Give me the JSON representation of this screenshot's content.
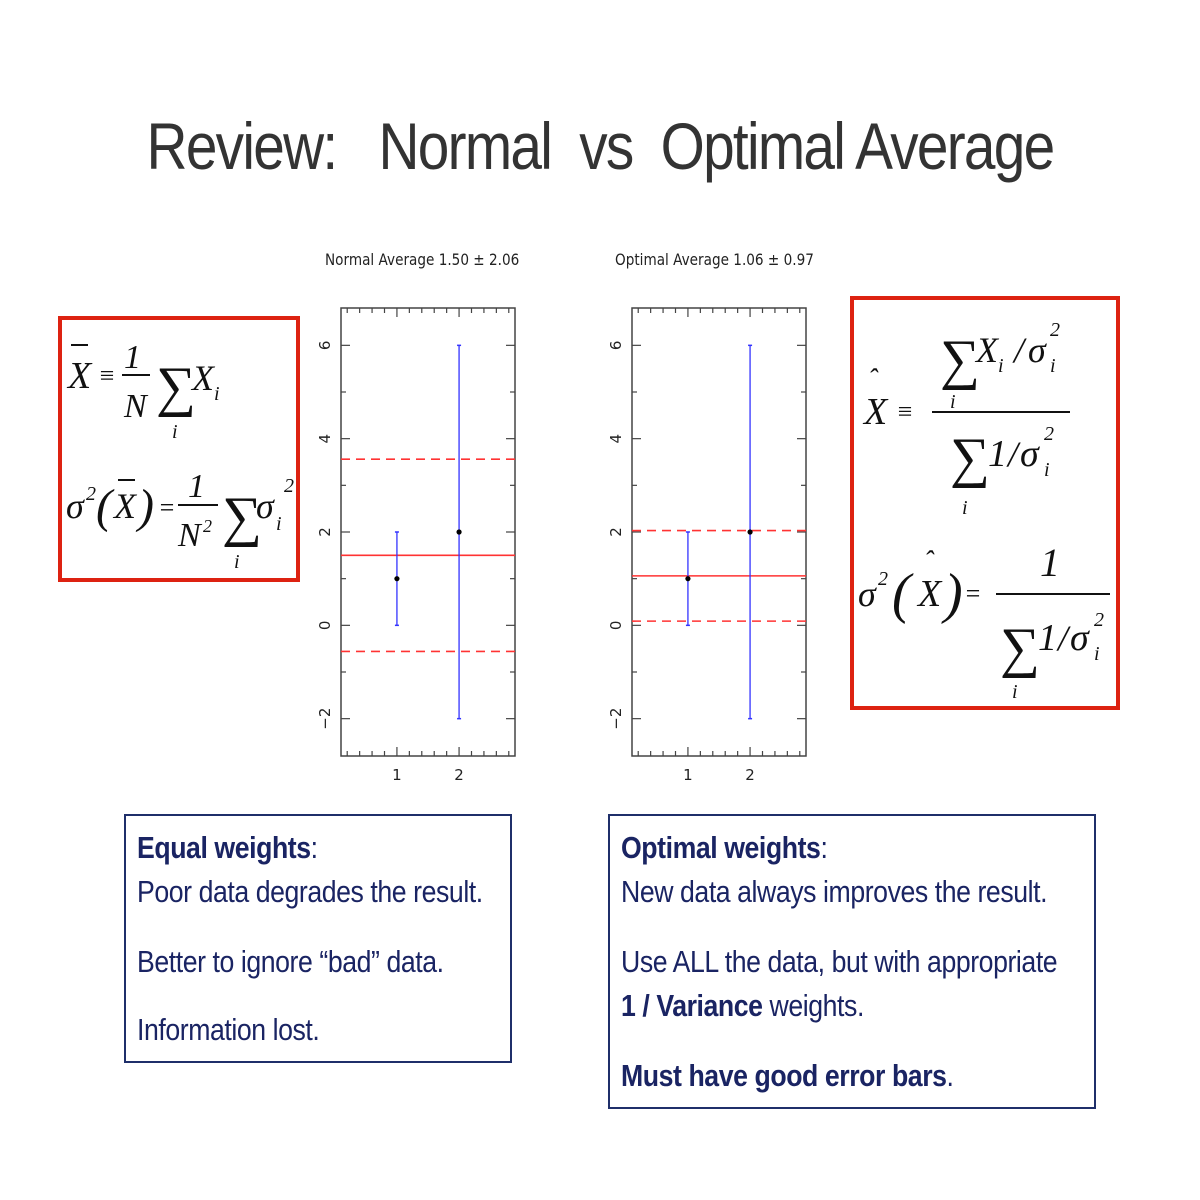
{
  "slide": {
    "title": "Review:   Normal  vs  Optimal Average"
  },
  "left_formula_box": {
    "formula1": "X̄ ≡ (1/N) Σ_i X_i",
    "formula2": "σ²(X̄) = (1/N²) Σ_i σ_i²"
  },
  "right_formula_box": {
    "formula1": "X̂ ≡ Σ_i X_i/σ_i² / Σ_i 1/σ_i²",
    "formula2": "σ²(X̂) = 1 / Σ_i 1/σ_i²"
  },
  "equal_box": {
    "heading": "Equal weights",
    "heading_suffix": ":",
    "line1": "Poor data degrades the result.",
    "line2": "Better to ignore “bad” data.",
    "line3": "Information lost."
  },
  "optimal_box": {
    "heading": "Optimal weights",
    "heading_suffix": ":",
    "line1": "New data always improves the result.",
    "line2": "Use ALL the data, but with appropriate",
    "line3_bold": "1 / Variance",
    "line3_rest": " weights.",
    "line4_bold": "Must have good error bars",
    "line4_suffix": "."
  },
  "colors": {
    "title": "#333333",
    "formula_border": "#dd2211",
    "text_box_border": "#1f2f6a",
    "text_box_text": "#1a2463",
    "error_bar": "#3333ff",
    "mean_line": "#ff3333",
    "point": "#000000"
  },
  "chart_data": [
    {
      "type": "scatter",
      "title": "Normal Average 1.50 ± 2.06",
      "x": [
        1,
        2
      ],
      "y": [
        1,
        2
      ],
      "yerr": [
        1,
        4
      ],
      "mean": 1.5,
      "mean_err": 2.06,
      "mean_line": 1.5,
      "err_lines": [
        3.56,
        -0.56
      ],
      "xlim": [
        0.1,
        2.9
      ],
      "ylim": [
        -2.8,
        6.8
      ],
      "xticks": [
        "1",
        "2"
      ],
      "yticks": [
        "−2",
        "0",
        "2",
        "4",
        "6"
      ],
      "xlabel": "",
      "ylabel": ""
    },
    {
      "type": "scatter",
      "title": "Optimal Average 1.06 ± 0.97",
      "x": [
        1,
        2
      ],
      "y": [
        1,
        2
      ],
      "yerr": [
        1,
        4
      ],
      "mean": 1.06,
      "mean_err": 0.97,
      "mean_line": 1.06,
      "err_lines": [
        2.03,
        0.09
      ],
      "xlim": [
        0.1,
        2.9
      ],
      "ylim": [
        -2.8,
        6.8
      ],
      "xticks": [
        "1",
        "2"
      ],
      "yticks": [
        "−2",
        "0",
        "2",
        "4",
        "6"
      ],
      "xlabel": "",
      "ylabel": ""
    }
  ]
}
